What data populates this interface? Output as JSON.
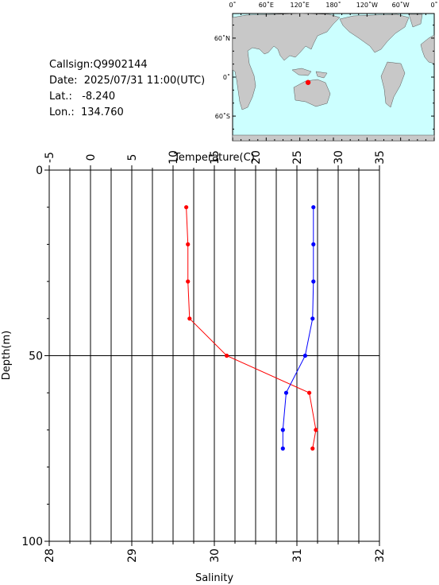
{
  "info": {
    "callsign": "Callsign:Q9902144",
    "date": "Date:  2025/07/31 11:00(UTC)",
    "lat": "Lat.:   -8.240",
    "lon": "Lon.:  134.760"
  },
  "map": {
    "top_labels": [
      "0˚",
      "60˚E",
      "120˚E",
      "180˚",
      "120˚W",
      "60˚W",
      "0˚"
    ],
    "left_labels": [
      "60˚N",
      "0˚",
      "60˚S"
    ],
    "ocean_color": "#ccffff",
    "land_color": "#c8c8c8",
    "marker": {
      "lon": 134.76,
      "lat": -8.24,
      "color": "#ff0000"
    }
  },
  "chart_data": {
    "type": "line",
    "top_axis_label": "Temperature(C)",
    "bottom_axis_label": "Salinity",
    "left_axis_label": "Depth(m)",
    "temperature_ticks": [
      -5,
      0,
      5,
      10,
      15,
      20,
      25,
      30,
      35
    ],
    "salinity_ticks": [
      28,
      29,
      30,
      31,
      32
    ],
    "depth_ticks": [
      0,
      50,
      100
    ],
    "temperature_range": [
      -5,
      35
    ],
    "salinity_range": [
      28,
      32
    ],
    "depth_range": [
      0,
      100
    ],
    "series": [
      {
        "name": "Temperature",
        "color": "#ff0000",
        "axis": "temperature",
        "depth": [
          10,
          20,
          30,
          40,
          50,
          60,
          70,
          75
        ],
        "values": [
          11.6,
          11.8,
          11.8,
          12.0,
          16.5,
          26.5,
          27.3,
          26.9
        ]
      },
      {
        "name": "Salinity",
        "color": "#0000ff",
        "axis": "salinity",
        "depth": [
          10,
          20,
          30,
          40,
          50,
          60,
          70,
          75
        ],
        "values": [
          31.2,
          31.2,
          31.2,
          31.19,
          31.1,
          30.87,
          30.83,
          30.83
        ]
      }
    ]
  }
}
